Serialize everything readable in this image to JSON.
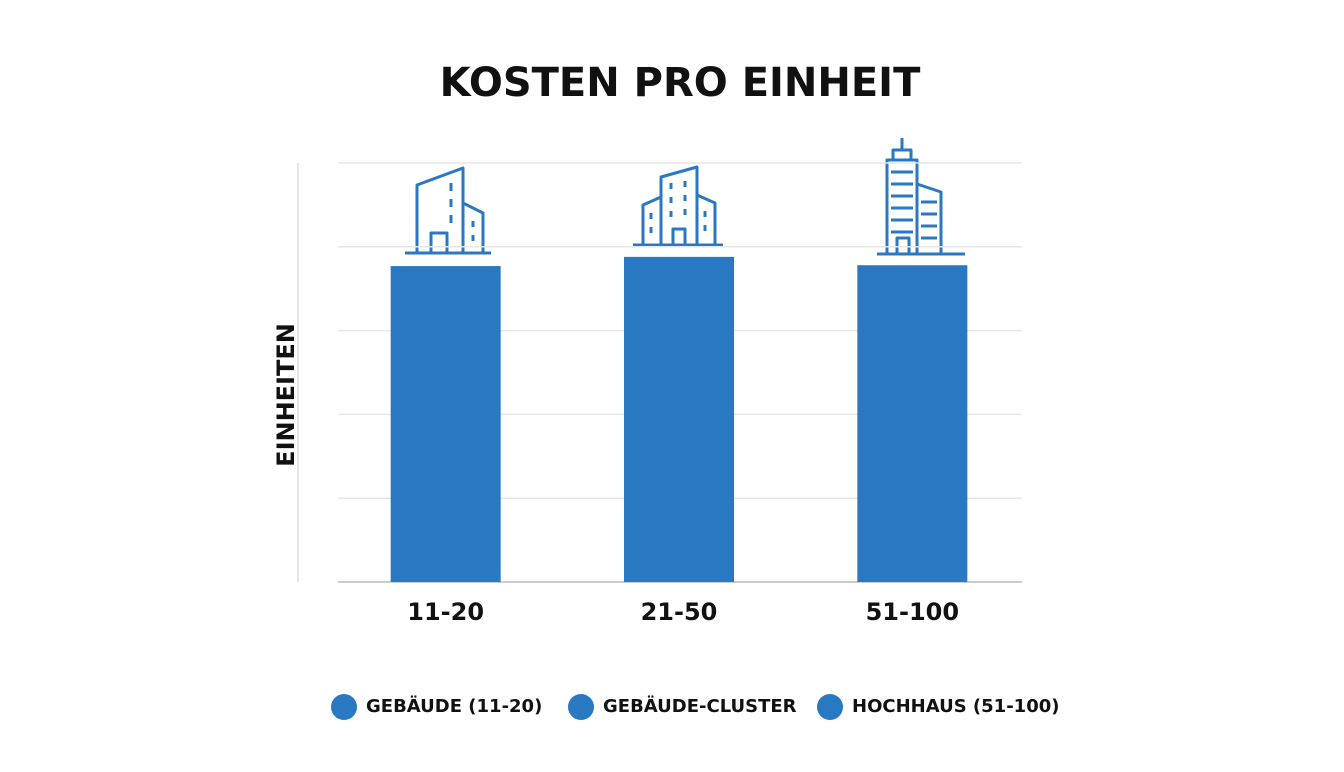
{
  "chart_data": {
    "type": "bar",
    "title": "KOSTEN PRO EINHEIT",
    "y_label": "EINHEITEN",
    "categories": [
      "11-20",
      "21-50",
      "51-100"
    ],
    "values": [
      3.77,
      3.88,
      3.78
    ],
    "color": "#2878c2",
    "ylim": [
      0,
      5
    ],
    "yticks": [
      0,
      1,
      2,
      3,
      4,
      5
    ],
    "grid": true,
    "tick_labels": false,
    "legend": [
      "GEBÄUDE (11-20)",
      "GEBÄUDE-CLUSTER",
      "HOCHHAUS (51-100)"
    ],
    "legend_position": "bottom"
  }
}
